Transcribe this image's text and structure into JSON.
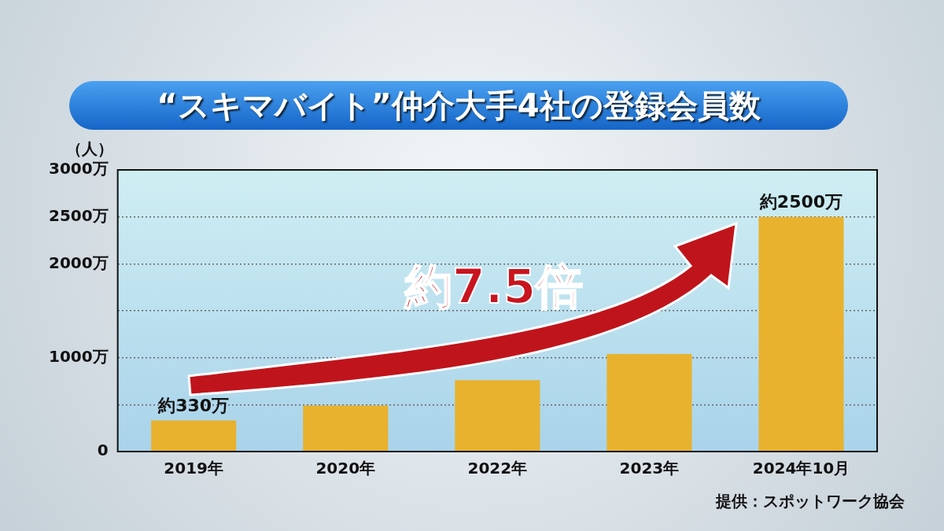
{
  "chart_data": {
    "type": "bar",
    "title": "“スキマバイト”仲介大手4社の登録会員数",
    "ylabel": "（人）",
    "categories": [
      "2019年",
      "2020年",
      "2022年",
      "2023年",
      "2024年10月"
    ],
    "values": [
      330,
      490,
      760,
      1040,
      2500
    ],
    "value_labels": [
      "約330万",
      null,
      null,
      null,
      "約2500万"
    ],
    "color": "#e8b22e",
    "ylim": [
      0,
      3000
    ],
    "yticks": [
      0,
      {
        "value": 500,
        "label": null
      },
      {
        "value": 1000,
        "label": "1000万"
      },
      {
        "value": 1500,
        "label": null
      },
      {
        "value": 2000,
        "label": "2000万"
      },
      {
        "value": 2500,
        "label": "2500万"
      },
      {
        "value": 3000,
        "label": "3000万"
      }
    ],
    "grid": "y",
    "annotations": [
      "約7.5倍",
      "提供：スポットワーク協会"
    ]
  }
}
